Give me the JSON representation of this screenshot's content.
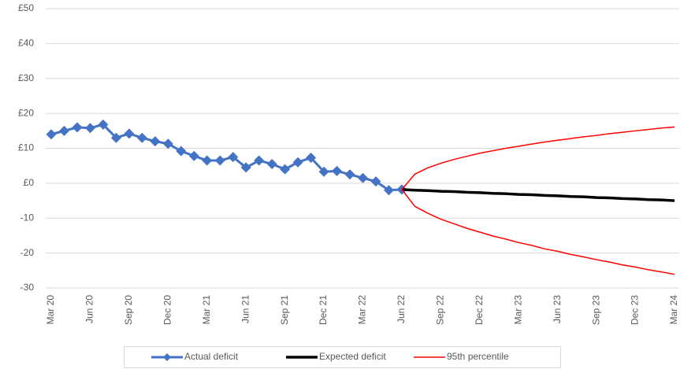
{
  "chart_data": {
    "type": "line",
    "categories": [
      "Mar 20",
      null,
      null,
      "Jun 20",
      null,
      null,
      "Sep 20",
      null,
      null,
      "Dec 20",
      null,
      null,
      "Mar 21",
      null,
      null,
      "Jun 21",
      null,
      null,
      "Sep 21",
      null,
      null,
      "Dec 21",
      null,
      null,
      "Mar 22",
      null,
      null,
      "Jun 22",
      null,
      null,
      "Sep 22",
      null,
      null,
      "Dec 22",
      null,
      null,
      "Mar 23",
      null,
      null,
      "Jun 23",
      null,
      null,
      "Sep 23",
      null,
      null,
      "Dec 23",
      null,
      null,
      "Mar 24"
    ],
    "series": [
      {
        "name": "Actual deficit",
        "color": "#4472c4",
        "marker": "diamond",
        "values": [
          14,
          15,
          16,
          15.8,
          16.8,
          13,
          14.2,
          13,
          12,
          11.3,
          9.2,
          7.8,
          6.5,
          6.5,
          7.5,
          4.5,
          6.5,
          5.5,
          4,
          6,
          7.3,
          3.3,
          3.5,
          2.5,
          1.5,
          0.5,
          -2,
          -1.8,
          null,
          null,
          null,
          null,
          null,
          null,
          null,
          null,
          null,
          null,
          null,
          null,
          null,
          null,
          null,
          null,
          null,
          null,
          null,
          null,
          null
        ]
      },
      {
        "name": "Expected deficit",
        "color": "#000000",
        "values": [
          null,
          null,
          null,
          null,
          null,
          null,
          null,
          null,
          null,
          null,
          null,
          null,
          null,
          null,
          null,
          null,
          null,
          null,
          null,
          null,
          null,
          null,
          null,
          null,
          null,
          null,
          null,
          -1.8,
          -2.0,
          -2.1,
          -2.3,
          -2.4,
          -2.6,
          -2.7,
          -2.9,
          -3.0,
          -3.2,
          -3.3,
          -3.5,
          -3.6,
          -3.8,
          -3.9,
          -4.1,
          -4.2,
          -4.4,
          -4.5,
          -4.7,
          -4.8,
          -5.0
        ]
      },
      {
        "name": "95th percentile",
        "color": "#ff0000",
        "values": [
          null,
          null,
          null,
          null,
          null,
          null,
          null,
          null,
          null,
          null,
          null,
          null,
          null,
          null,
          null,
          null,
          null,
          null,
          null,
          null,
          null,
          null,
          null,
          null,
          null,
          null,
          null,
          -1.8,
          2.6,
          4.4,
          5.7,
          6.8,
          7.7,
          8.6,
          9.3,
          10.0,
          10.6,
          11.2,
          11.8,
          12.3,
          12.8,
          13.3,
          13.7,
          14.2,
          14.6,
          15.0,
          15.4,
          15.8,
          16.1
        ],
        "lower_values": [
          null,
          null,
          null,
          null,
          null,
          null,
          null,
          null,
          null,
          null,
          null,
          null,
          null,
          null,
          null,
          null,
          null,
          null,
          null,
          null,
          null,
          null,
          null,
          null,
          null,
          null,
          null,
          -1.8,
          -6.6,
          -8.6,
          -10.3,
          -11.6,
          -12.9,
          -14.0,
          -15.1,
          -16.0,
          -17.0,
          -17.8,
          -18.8,
          -19.5,
          -20.4,
          -21.1,
          -21.9,
          -22.6,
          -23.4,
          -24.0,
          -24.8,
          -25.4,
          -26.1
        ]
      }
    ],
    "ylim": [
      -30,
      50
    ],
    "yticks": [
      -30,
      -20,
      -10,
      {
        "value": 0,
        "label": "£0"
      },
      {
        "value": 10,
        "label": "£10"
      },
      {
        "value": 20,
        "label": "£20"
      },
      {
        "value": 30,
        "label": "£30"
      },
      {
        "value": 40,
        "label": "£40"
      },
      {
        "value": 50,
        "label": "£50"
      }
    ],
    "grid": true,
    "legend": "bottom"
  }
}
